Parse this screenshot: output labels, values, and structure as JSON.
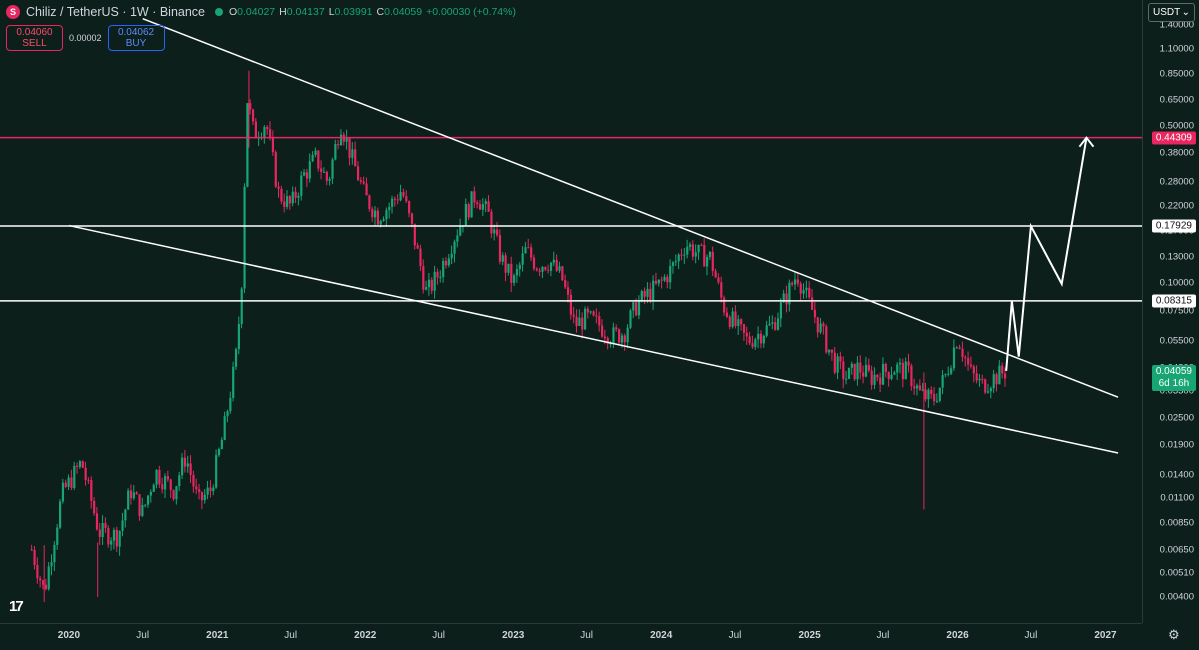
{
  "header": {
    "symbol_icon": "S",
    "title": "Chiliz / TetherUS · 1W · Binance",
    "ohlc": [
      {
        "k": "O",
        "v": "0.04027"
      },
      {
        "k": "H",
        "v": "0.04137"
      },
      {
        "k": "L",
        "v": "0.03991"
      },
      {
        "k": "C",
        "v": "0.04059"
      },
      {
        "k": "",
        "v": "+0.00030 (+0.74%)"
      }
    ]
  },
  "trade": {
    "sell_price": "0.04060",
    "sell_label": "SELL",
    "spread": "0.00002",
    "buy_price": "0.04062",
    "buy_label": "BUY"
  },
  "currency": {
    "label": "USDT",
    "icon": "chevron-down-icon"
  },
  "colors": {
    "up": "#17a574",
    "down": "#e8265f",
    "background": "#0c1f1b",
    "lines": "#ffffff",
    "resistance": "#e8265f"
  },
  "price_labels": {
    "resistance_top": "0.44309",
    "level_mid": "0.17929",
    "level_low": "0.08315",
    "current": "0.04059",
    "countdown": "6d 16h"
  },
  "chart_data": {
    "type": "candlestick",
    "scale": "log",
    "y_ticks": [
      "1.40000",
      "1.10000",
      "0.85000",
      "0.65000",
      "0.50000",
      "0.38000",
      "0.28000",
      "0.22000",
      "0.17000",
      "0.13000",
      "0.10000",
      "0.07500",
      "0.05500",
      "0.04200",
      "0.03300",
      "0.02500",
      "0.01900",
      "0.01400",
      "0.01100",
      "0.00850",
      "0.00650",
      "0.00510",
      "0.00400"
    ],
    "x_ticks": [
      {
        "label": "2020",
        "year": true
      },
      {
        "label": "Jul",
        "year": false
      },
      {
        "label": "2021",
        "year": true
      },
      {
        "label": "Jul",
        "year": false
      },
      {
        "label": "2022",
        "year": true
      },
      {
        "label": "Jul",
        "year": false
      },
      {
        "label": "2023",
        "year": true
      },
      {
        "label": "Jul",
        "year": false
      },
      {
        "label": "2024",
        "year": true
      },
      {
        "label": "Jul",
        "year": false
      },
      {
        "label": "2025",
        "year": true
      },
      {
        "label": "Jul",
        "year": false
      },
      {
        "label": "2026",
        "year": true
      },
      {
        "label": "Jul",
        "year": false
      },
      {
        "label": "2027",
        "year": true
      }
    ],
    "price_path": [
      [
        "2019-10-01",
        0.0065
      ],
      [
        "2019-11-01",
        0.0042
      ],
      [
        "2019-12-15",
        0.0115
      ],
      [
        "2020-02-01",
        0.016
      ],
      [
        "2020-03-15",
        0.0078
      ],
      [
        "2020-05-01",
        0.0075
      ],
      [
        "2020-06-01",
        0.012
      ],
      [
        "2020-07-01",
        0.0095
      ],
      [
        "2020-08-01",
        0.0145
      ],
      [
        "2020-09-15",
        0.012
      ],
      [
        "2020-10-15",
        0.017
      ],
      [
        "2020-11-15",
        0.0105
      ],
      [
        "2020-12-15",
        0.012
      ],
      [
        "2021-01-15",
        0.021
      ],
      [
        "2021-02-15",
        0.045
      ],
      [
        "2021-03-01",
        0.09
      ],
      [
        "2021-03-15",
        0.67
      ],
      [
        "2021-04-01",
        0.46
      ],
      [
        "2021-05-01",
        0.52
      ],
      [
        "2021-06-01",
        0.25
      ],
      [
        "2021-07-01",
        0.22
      ],
      [
        "2021-08-01",
        0.3
      ],
      [
        "2021-09-01",
        0.36
      ],
      [
        "2021-10-01",
        0.28
      ],
      [
        "2021-11-01",
        0.52
      ],
      [
        "2021-12-01",
        0.35
      ],
      [
        "2022-01-01",
        0.24
      ],
      [
        "2022-02-01",
        0.2
      ],
      [
        "2022-03-01",
        0.22
      ],
      [
        "2022-04-01",
        0.26
      ],
      [
        "2022-05-01",
        0.16
      ],
      [
        "2022-06-01",
        0.09
      ],
      [
        "2022-07-01",
        0.11
      ],
      [
        "2022-08-01",
        0.15
      ],
      [
        "2022-09-01",
        0.2
      ],
      [
        "2022-10-01",
        0.25
      ],
      [
        "2022-11-01",
        0.2
      ],
      [
        "2022-12-01",
        0.13
      ],
      [
        "2023-01-01",
        0.1
      ],
      [
        "2023-02-01",
        0.14
      ],
      [
        "2023-03-01",
        0.12
      ],
      [
        "2023-04-01",
        0.125
      ],
      [
        "2023-05-01",
        0.105
      ],
      [
        "2023-06-01",
        0.065
      ],
      [
        "2023-07-01",
        0.07
      ],
      [
        "2023-08-01",
        0.065
      ],
      [
        "2023-09-01",
        0.058
      ],
      [
        "2023-10-01",
        0.06
      ],
      [
        "2023-11-01",
        0.08
      ],
      [
        "2023-12-01",
        0.09
      ],
      [
        "2024-01-01",
        0.1
      ],
      [
        "2024-02-01",
        0.12
      ],
      [
        "2024-03-01",
        0.15
      ],
      [
        "2024-04-01",
        0.135
      ],
      [
        "2024-05-01",
        0.13
      ],
      [
        "2024-06-01",
        0.08
      ],
      [
        "2024-07-01",
        0.065
      ],
      [
        "2024-08-01",
        0.055
      ],
      [
        "2024-09-01",
        0.06
      ],
      [
        "2024-10-01",
        0.065
      ],
      [
        "2024-11-01",
        0.085
      ],
      [
        "2024-12-01",
        0.11
      ],
      [
        "2025-01-01",
        0.08
      ],
      [
        "2025-02-01",
        0.06
      ],
      [
        "2025-03-01",
        0.045
      ],
      [
        "2025-04-01",
        0.038
      ],
      [
        "2025-05-01",
        0.042
      ],
      [
        "2025-06-01",
        0.038
      ],
      [
        "2025-07-01",
        0.04
      ],
      [
        "2025-08-01",
        0.042
      ],
      [
        "2025-09-01",
        0.04
      ],
      [
        "2025-10-01",
        0.032
      ],
      [
        "2025-11-01",
        0.03
      ],
      [
        "2025-12-01",
        0.038
      ],
      [
        "2026-01-01",
        0.058
      ],
      [
        "2026-02-01",
        0.04
      ],
      [
        "2026-03-01",
        0.035
      ],
      [
        "2026-04-01",
        0.038
      ],
      [
        "2026-05-01",
        0.0406
      ]
    ],
    "trend_lines": [
      {
        "name": "upper-trendline",
        "from": [
          "2020-07-01",
          1.5
        ],
        "to": [
          "2027-02-01",
          0.031
        ]
      },
      {
        "name": "lower-trendline",
        "from": [
          "2020-01-01",
          0.18
        ],
        "to": [
          "2027-02-01",
          0.0175
        ]
      }
    ],
    "horizontal_levels": [
      0.44309,
      0.17929,
      0.08315
    ],
    "projection_path": [
      [
        "2026-05-01",
        0.0406
      ],
      [
        "2026-05-15",
        0.083
      ],
      [
        "2026-06-01",
        0.047
      ],
      [
        "2026-07-01",
        0.179
      ],
      [
        "2026-09-15",
        0.099
      ],
      [
        "2026-11-15",
        0.443
      ]
    ],
    "ylim": [
      0.0035,
      1.45
    ],
    "xlim": [
      "2019-07-15",
      "2027-04-01"
    ],
    "grid": false
  }
}
